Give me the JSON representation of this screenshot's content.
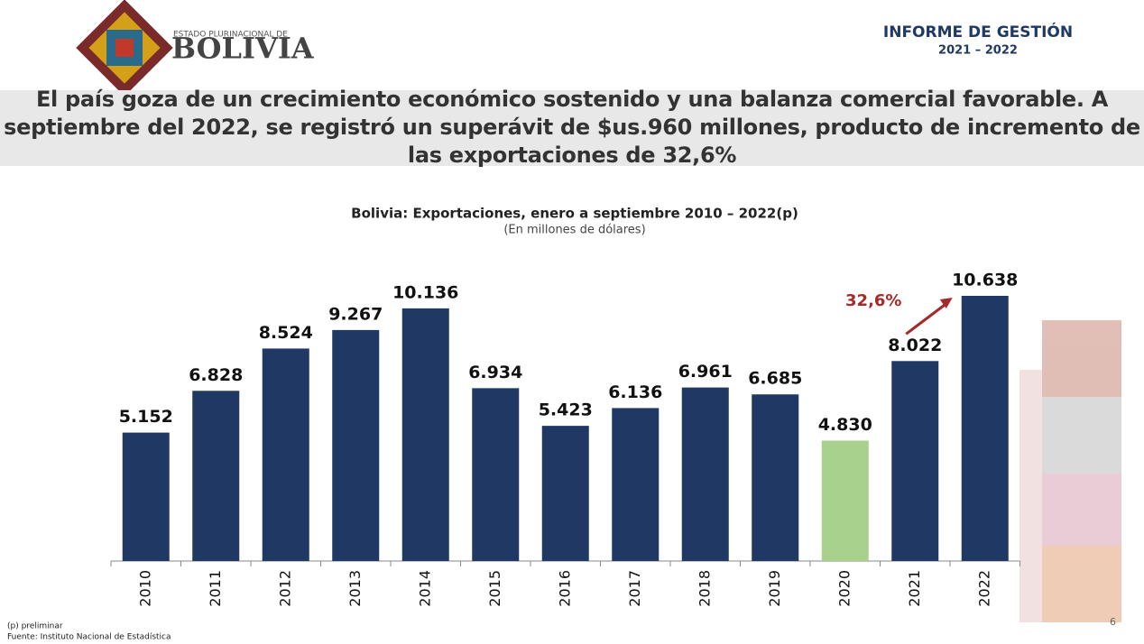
{
  "header": {
    "brand_small": "ESTADO PLURINACIONAL DE",
    "brand": "BOLIVIA",
    "report": "INFORME DE GESTIÓN",
    "period": "2021 – 2022"
  },
  "headline": "El país goza de un crecimiento económico sostenido y una balanza comercial favorable. A septiembre del 2022, se registró un superávit de $us.960 millones, producto de incremento de las exportaciones de 32,6%",
  "chart_data": {
    "type": "bar",
    "title": "Bolivia: Exportaciones, enero a septiembre 2010 – 2022(p)",
    "subtitle": "(En millones de dólares)",
    "categories": [
      "2010",
      "2011",
      "2012",
      "2013",
      "2014",
      "2015",
      "2016",
      "2017",
      "2018",
      "2019",
      "2020",
      "2021",
      "2022"
    ],
    "values": [
      5152,
      6828,
      8524,
      9267,
      10136,
      6934,
      5423,
      6136,
      6961,
      6685,
      4830,
      8022,
      10638
    ],
    "value_labels": [
      "5.152",
      "6.828",
      "8.524",
      "9.267",
      "10.136",
      "6.934",
      "5.423",
      "6.136",
      "6.961",
      "6.685",
      "4.830",
      "8.022",
      "10.638"
    ],
    "colors": [
      "#203864",
      "#203864",
      "#203864",
      "#203864",
      "#203864",
      "#203864",
      "#203864",
      "#203864",
      "#203864",
      "#203864",
      "#a9d18e",
      "#203864",
      "#203864"
    ],
    "annotation": "32,6%",
    "annotation_color": "#a52a2a"
  },
  "footer": {
    "note": "(p) preliminar",
    "source": "Fuente: Instituto Nacional de Estadística",
    "page": "6"
  }
}
